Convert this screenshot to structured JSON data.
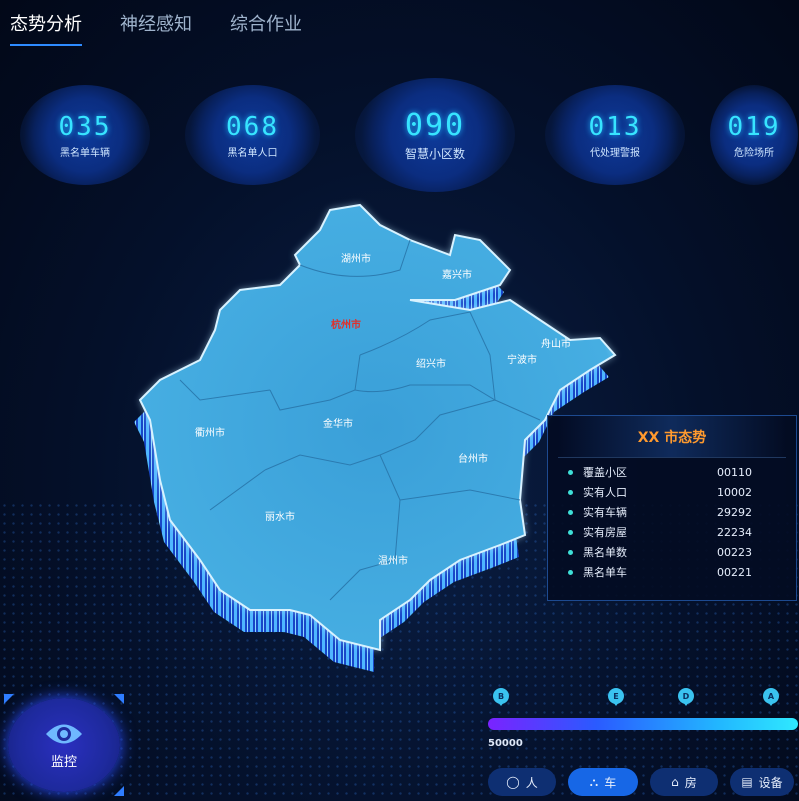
{
  "tabs": [
    {
      "label": "态势分析",
      "active": true
    },
    {
      "label": "神经感知",
      "active": false
    },
    {
      "label": "综合作业",
      "active": false
    }
  ],
  "stats": [
    {
      "value": "035",
      "label": "黑名单车辆"
    },
    {
      "value": "068",
      "label": "黑名单人口"
    },
    {
      "value": "090",
      "label": "智慧小区数"
    },
    {
      "value": "013",
      "label": "代处理警报"
    },
    {
      "value": "019",
      "label": "危险场所"
    }
  ],
  "map": {
    "cities": [
      {
        "name": "湖州市",
        "highlight": false
      },
      {
        "name": "嘉兴市",
        "highlight": false
      },
      {
        "name": "杭州市",
        "highlight": true
      },
      {
        "name": "舟山市",
        "highlight": false
      },
      {
        "name": "绍兴市",
        "highlight": false
      },
      {
        "name": "宁波市",
        "highlight": false
      },
      {
        "name": "衢州市",
        "highlight": false
      },
      {
        "name": "金华市",
        "highlight": false
      },
      {
        "name": "台州市",
        "highlight": false
      },
      {
        "name": "丽水市",
        "highlight": false
      },
      {
        "name": "温州市",
        "highlight": false
      }
    ],
    "fill_color": "#3fa4dc",
    "highlight_color": "#e0302a"
  },
  "panel": {
    "title": "XX 市态势",
    "rows": [
      {
        "label": "覆盖小区",
        "value": "00110"
      },
      {
        "label": "实有人口",
        "value": "10002"
      },
      {
        "label": "实有车辆",
        "value": "29292"
      },
      {
        "label": "实有房屋",
        "value": "22234"
      },
      {
        "label": "黑名单数",
        "value": "00223"
      },
      {
        "label": "黑名单车",
        "value": "00221"
      }
    ]
  },
  "monitor": {
    "label": "监控",
    "icon": "eye-icon"
  },
  "timeline": {
    "markers": [
      "B",
      "E",
      "D",
      "A"
    ],
    "label": "50000"
  },
  "filters": [
    {
      "label": "人",
      "icon": "person-icon",
      "active": false
    },
    {
      "label": "车",
      "icon": "car-icon",
      "active": true
    },
    {
      "label": "房",
      "icon": "house-icon",
      "active": false
    },
    {
      "label": "设备",
      "icon": "device-icon",
      "active": false
    }
  ]
}
